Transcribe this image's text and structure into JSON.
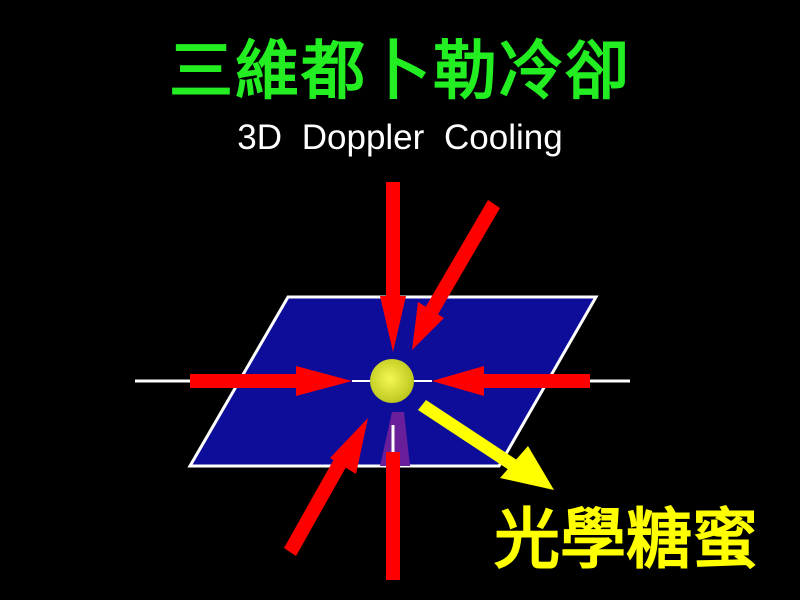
{
  "title": {
    "chinese": "三維都卜勒冷卻",
    "english": "3D Doppler Cooling"
  },
  "caption": {
    "text": "光學糖蜜"
  },
  "colors": {
    "background": "#000000",
    "title_chinese": "#22ee22",
    "title_english": "#ffffff",
    "caption": "#ffff00",
    "laser_beam": "#ff0000",
    "plane_fill": "#0d0d9a",
    "plane_stroke": "#ffffff",
    "axis_line": "#ffffff",
    "atom": "#e8ee33",
    "emission_arrow": "#ffff00",
    "shadow": "#6a1f9a"
  }
}
